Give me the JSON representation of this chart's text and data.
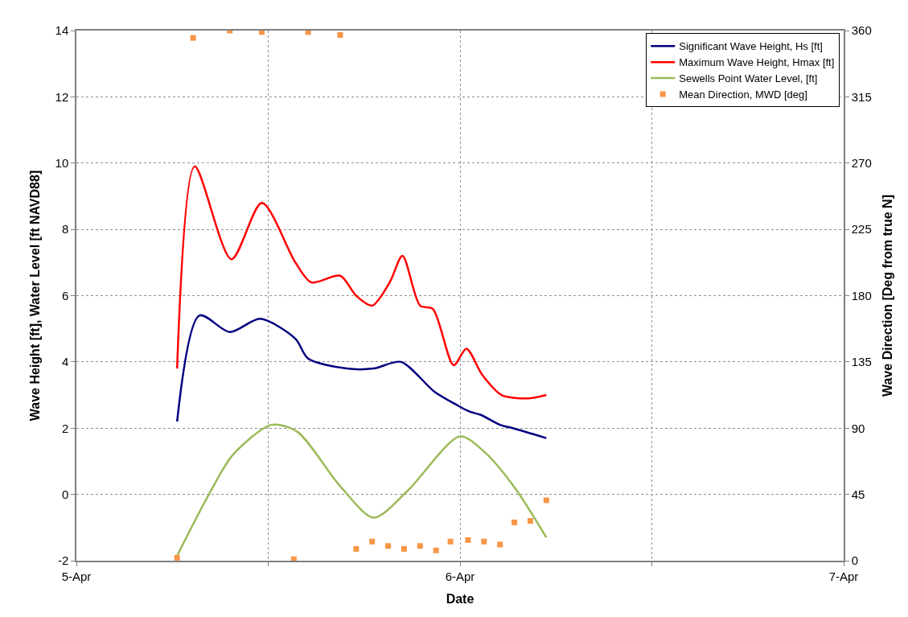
{
  "chart_data": {
    "type": "line",
    "xlabel": "Date",
    "ylabel": "Wave Height [ft], Water Level [ft NAVD88]",
    "y2label": "Wave Direction [Deg from true N]",
    "xlim": [
      "--04-05",
      "--04-07"
    ],
    "xticks": [
      {
        "value": "--04-05",
        "label": "5-Apr"
      },
      {
        "value": "--04-05T12:00",
        "label": null
      },
      {
        "value": "--04-06",
        "label": "6-Apr"
      },
      {
        "value": "--04-06T12:00",
        "label": null
      },
      {
        "value": "--04-07",
        "label": "7-Apr"
      }
    ],
    "ylim": [
      -2,
      14
    ],
    "yticks": [
      -2,
      0,
      2,
      4,
      6,
      8,
      10,
      12,
      14
    ],
    "y2lim": [
      0,
      360
    ],
    "y2ticks": [
      0,
      45,
      90,
      135,
      180,
      225,
      270,
      315,
      360
    ],
    "grid": true,
    "legend": "top right",
    "series": [
      {
        "name": "Significant Wave Height, Hs [ft]",
        "color": "#000080",
        "x": [
          "--04-05T06:18",
          "--04-05T07:42",
          "--04-05T09:36",
          "--04-05T11:30",
          "--04-05T13:42",
          "--04-05T14:30",
          "--04-05T16:54",
          "--04-05T18:36",
          "--04-05T20:18",
          "--04-05T22:24",
          "--04-05T23:48",
          "--04-06T00:36",
          "--04-06T01:18",
          "--04-06T02:30",
          "--04-06T03:18",
          "--04-06T05:24"
        ],
        "values": [
          2.2,
          5.4,
          4.9,
          5.3,
          4.7,
          4.1,
          3.8,
          3.8,
          4.0,
          3.1,
          2.7,
          2.5,
          2.4,
          2.1,
          2.0,
          1.7
        ]
      },
      {
        "name": "Maximum Wave Height, Hmax [ft]",
        "color": "#ff0000",
        "x": [
          "--04-05T06:18",
          "--04-05T07:24",
          "--04-05T09:42",
          "--04-05T11:36",
          "--04-05T13:42",
          "--04-05T14:42",
          "--04-05T16:30",
          "--04-05T17:30",
          "--04-05T18:30",
          "--04-05T19:36",
          "--04-05T20:24",
          "--04-05T21:30",
          "--04-05T22:18",
          "--04-05T23:36",
          "--04-06T00:24",
          "--04-06T01:24",
          "--04-06T02:36",
          "--04-06T04:18",
          "--04-06T05:24"
        ],
        "values": [
          3.8,
          9.9,
          7.1,
          8.8,
          7.0,
          6.4,
          6.6,
          6.0,
          5.7,
          6.4,
          7.2,
          5.7,
          5.6,
          3.9,
          4.4,
          3.6,
          3.0,
          2.9,
          3.0
        ]
      },
      {
        "name": "Sewells Point Water Level, [ft]",
        "color": "#9bbb59",
        "x": [
          "--04-05T06:18",
          "--04-05T08:24",
          "--04-05T09:48",
          "--04-05T12:12",
          "--04-05T13:48",
          "--04-05T16:30",
          "--04-05T18:36",
          "--04-05T20:42",
          "--04-06T00:00",
          "--04-06T01:36",
          "--04-06T03:30",
          "--04-06T05:24"
        ],
        "values": [
          -1.85,
          0.1,
          1.2,
          2.1,
          1.9,
          0.25,
          -0.7,
          0.1,
          1.75,
          1.25,
          0.15,
          -1.3
        ]
      },
      {
        "name": "Mean Direction, MWD [deg]",
        "color": "#f79646",
        "type": "scatter",
        "marker": "square",
        "axis": "y2",
        "x": [
          "--04-05T06:18",
          "--04-05T07:18",
          "--04-05T09:36",
          "--04-05T11:36",
          "--04-05T13:36",
          "--04-05T14:30",
          "--04-05T16:30",
          "--04-05T17:30",
          "--04-05T18:30",
          "--04-05T19:30",
          "--04-05T20:30",
          "--04-05T21:30",
          "--04-05T22:30",
          "--04-05T23:24",
          "--04-06T00:30",
          "--04-06T01:30",
          "--04-06T02:30",
          "--04-06T03:24",
          "--04-06T04:24",
          "--04-06T05:24"
        ],
        "values": [
          2,
          355,
          360,
          359,
          1,
          359,
          357,
          8,
          13,
          10,
          8,
          10,
          7,
          13,
          14,
          13,
          11,
          26,
          27,
          41
        ]
      }
    ]
  }
}
